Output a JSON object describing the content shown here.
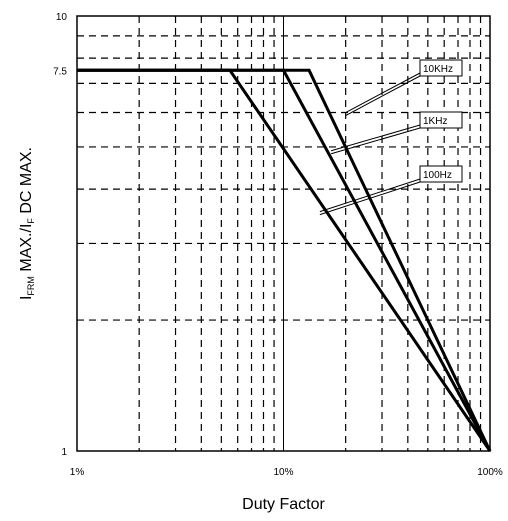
{
  "chart_data": {
    "type": "line",
    "x_scale": "log",
    "y_scale": "log",
    "xlim": [
      0.01,
      1.0
    ],
    "ylim": [
      1,
      10
    ],
    "x_ticks": [
      {
        "value": 0.01,
        "label": "1%"
      },
      {
        "value": 0.1,
        "label": "10%"
      },
      {
        "value": 1.0,
        "label": "100%"
      }
    ],
    "y_ticks": [
      {
        "value": 1,
        "label": "1"
      },
      {
        "value": 7.5,
        "label": "7.5"
      },
      {
        "value": 10,
        "label": "10"
      }
    ],
    "xlabel": "Duty Factor",
    "ylabel": {
      "main": "I",
      "sub1": "FRM",
      "mid": " MAX./I",
      "sub2": "F",
      "end": " DC MAX."
    },
    "grid": true,
    "series": [
      {
        "name": "10KHz",
        "points": [
          [
            0.01,
            7.5
          ],
          [
            0.133,
            7.5
          ],
          [
            1.0,
            1.0
          ]
        ],
        "label_anchor": [
          0.2,
          6.0
        ]
      },
      {
        "name": "1KHz",
        "points": [
          [
            0.01,
            7.5
          ],
          [
            0.1,
            7.5
          ],
          [
            1.0,
            1.0
          ]
        ],
        "label_anchor": [
          0.17,
          4.9
        ]
      },
      {
        "name": "100Hz",
        "points": [
          [
            0.01,
            7.5
          ],
          [
            0.055,
            7.5
          ],
          [
            1.0,
            1.0
          ]
        ],
        "label_anchor": [
          0.15,
          3.55
        ]
      }
    ]
  }
}
